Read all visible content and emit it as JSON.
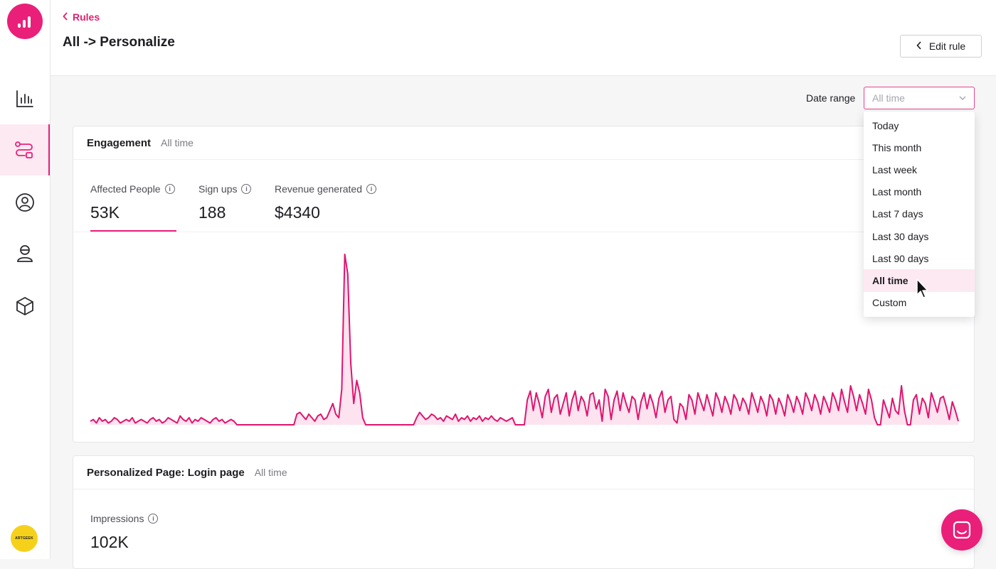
{
  "header": {
    "back_label": "Rules",
    "title": "All -> Personalize",
    "edit_label": "Edit rule"
  },
  "sidebar": {
    "items": [
      {
        "name": "analytics",
        "icon": "bar-chart-icon",
        "active": false
      },
      {
        "name": "rules",
        "icon": "flow-icon",
        "active": true
      },
      {
        "name": "audiences",
        "icon": "people-circle-icon",
        "active": false
      },
      {
        "name": "users",
        "icon": "user-icon",
        "active": false
      },
      {
        "name": "integrations",
        "icon": "box-icon",
        "active": false
      }
    ],
    "avatar_text": "ARTGEEK"
  },
  "date_range": {
    "label": "Date range",
    "selected": "All time",
    "options": [
      "Today",
      "This month",
      "Last week",
      "Last month",
      "Last 7 days",
      "Last 30 days",
      "Last 90 days",
      "All time",
      "Custom"
    ]
  },
  "engagement": {
    "title": "Engagement",
    "period": "All time",
    "metrics": [
      {
        "label": "Affected People",
        "value": "53K"
      },
      {
        "label": "Sign ups",
        "value": "188"
      },
      {
        "label": "Revenue generated",
        "value": "$4340"
      }
    ]
  },
  "personalized": {
    "title": "Personalized Page: Login page",
    "period": "All time",
    "metrics": [
      {
        "label": "Impressions",
        "value": "102K"
      }
    ]
  },
  "colors": {
    "accent": "#ea1f7a",
    "accent_light": "#fde9f2"
  },
  "chart_data": {
    "type": "area",
    "title": "",
    "xlabel": "",
    "ylabel": "",
    "grid": false,
    "ylim": [
      0,
      100
    ],
    "series": [
      {
        "values": [
          2,
          3,
          1,
          4,
          2,
          3,
          1,
          2,
          4,
          3,
          1,
          2,
          3,
          2,
          4,
          1,
          2,
          3,
          2,
          1,
          3,
          4,
          2,
          3,
          1,
          2,
          4,
          3,
          2,
          1,
          5,
          3,
          2,
          4,
          1,
          3,
          2,
          4,
          3,
          2,
          1,
          3,
          4,
          2,
          3,
          1,
          2,
          3,
          2,
          0,
          0,
          0,
          0,
          0,
          0,
          0,
          0,
          0,
          0,
          0,
          0,
          0,
          0,
          0,
          0,
          0,
          0,
          0,
          0,
          6,
          7,
          5,
          3,
          6,
          4,
          2,
          5,
          6,
          3,
          4,
          8,
          12,
          6,
          4,
          20,
          96,
          85,
          35,
          12,
          25,
          18,
          4,
          0,
          0,
          0,
          0,
          0,
          0,
          0,
          0,
          0,
          0,
          0,
          0,
          0,
          0,
          0,
          0,
          0,
          4,
          7,
          5,
          3,
          4,
          6,
          5,
          3,
          4,
          2,
          5,
          4,
          3,
          6,
          2,
          4,
          3,
          5,
          2,
          4,
          3,
          5,
          2,
          4,
          3,
          5,
          3,
          2,
          4,
          3,
          2,
          3,
          4,
          0,
          0,
          0,
          0,
          14,
          19,
          8,
          18,
          12,
          4,
          16,
          20,
          7,
          15,
          17,
          6,
          12,
          18,
          5,
          14,
          19,
          8,
          16,
          13,
          5,
          17,
          18,
          9,
          14,
          2,
          20,
          16,
          3,
          14,
          19,
          8,
          18,
          12,
          7,
          16,
          14,
          3,
          13,
          18,
          9,
          17,
          12,
          4,
          15,
          19,
          7,
          14,
          16,
          3,
          1,
          12,
          10,
          3,
          17,
          14,
          6,
          18,
          13,
          8,
          17,
          11,
          5,
          18,
          14,
          7,
          16,
          12,
          6,
          17,
          14,
          8,
          15,
          12,
          6,
          18,
          13,
          7,
          16,
          12,
          5,
          17,
          14,
          6,
          15,
          11,
          5,
          17,
          13,
          7,
          16,
          12,
          6,
          18,
          14,
          8,
          17,
          13,
          6,
          16,
          12,
          7,
          18,
          14,
          8,
          20,
          13,
          7,
          22,
          16,
          8,
          17,
          12,
          6,
          20,
          14,
          4,
          0,
          0,
          14,
          9,
          4,
          15,
          8,
          6,
          22,
          8,
          0,
          0,
          14,
          17,
          6,
          15,
          12,
          4,
          18,
          13,
          7,
          15,
          16,
          10,
          3,
          13,
          8,
          2
        ]
      }
    ]
  }
}
